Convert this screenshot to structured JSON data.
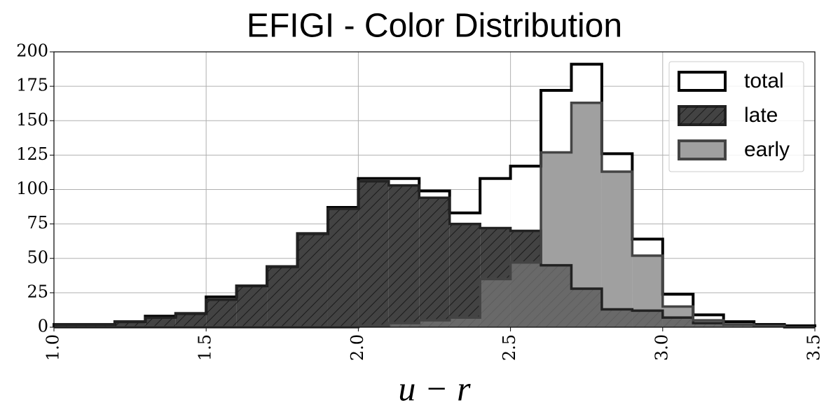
{
  "chart_data": {
    "type": "histogram",
    "title": "EFIGI - Color Distribution",
    "xlabel": "u − r",
    "bins": [
      1.0,
      1.1,
      1.2,
      1.3,
      1.4,
      1.5,
      1.6,
      1.7,
      1.8,
      1.9,
      2.0,
      2.1,
      2.2,
      2.3,
      2.4,
      2.5,
      2.6,
      2.7,
      2.8,
      2.9,
      3.0,
      3.1,
      3.2,
      3.3,
      3.4,
      3.5
    ],
    "series": [
      {
        "name": "total",
        "color": "#ffffff",
        "edge": "#000000",
        "hatch": false,
        "values": [
          2,
          2,
          4,
          8,
          10,
          22,
          30,
          44,
          68,
          87,
          108,
          108,
          99,
          83,
          108,
          117,
          172,
          191,
          126,
          64,
          24,
          9,
          4,
          2,
          1
        ]
      },
      {
        "name": "late",
        "color": "#333333",
        "edge": "#222222",
        "hatch": true,
        "values": [
          2,
          2,
          4,
          7,
          10,
          20,
          30,
          44,
          68,
          86,
          106,
          103,
          94,
          75,
          72,
          70,
          45,
          28,
          13,
          12,
          7,
          3,
          2,
          1,
          0
        ]
      },
      {
        "name": "early",
        "color": "#797979",
        "edge": "#444444",
        "hatch": false,
        "values": [
          0,
          0,
          0,
          0,
          0,
          0,
          0,
          0,
          0,
          0,
          1,
          3,
          5,
          7,
          35,
          47,
          127,
          163,
          113,
          52,
          15,
          5,
          2,
          1,
          0
        ]
      }
    ],
    "xlim": [
      1.0,
      3.5
    ],
    "ylim": [
      0,
      200
    ],
    "xticks": [
      {
        "value": 1,
        "label": "1.0"
      },
      1.5,
      {
        "value": 2,
        "label": "2.0"
      },
      2.5,
      {
        "value": 3,
        "label": "3.0"
      },
      3.5
    ],
    "yticks": [
      0,
      25,
      50,
      75,
      100,
      125,
      150,
      175,
      200
    ],
    "grid": true,
    "legend": "upper right"
  }
}
